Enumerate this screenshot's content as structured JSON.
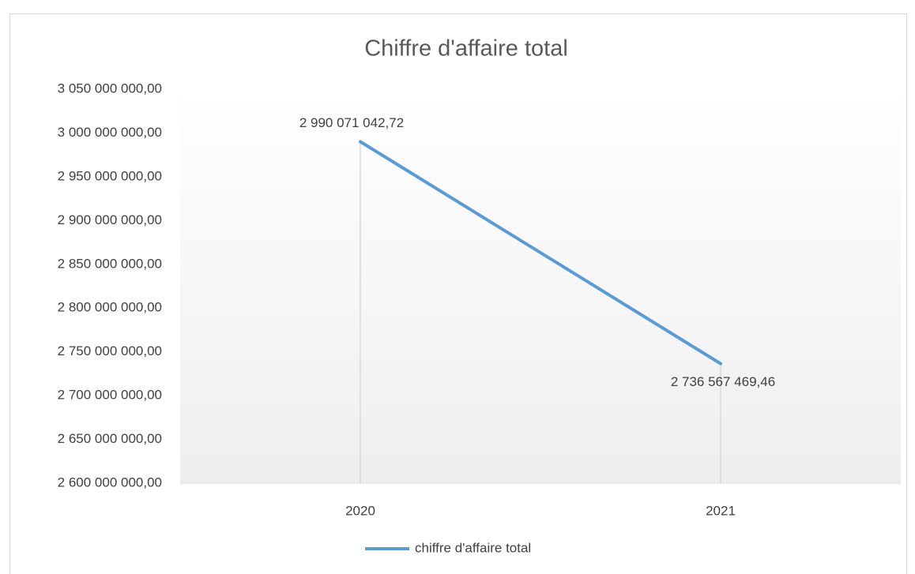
{
  "chart_data": {
    "type": "line",
    "title": "Chiffre d'affaire total",
    "categories": [
      "2020",
      "2021"
    ],
    "series": [
      {
        "name": "chiffre d'affaire total",
        "color": "#5b9bd5",
        "values": [
          2990071042.72,
          2736567469.46
        ],
        "value_labels": [
          "2 990 071 042,72",
          "2 736 567 469,46"
        ]
      }
    ],
    "ylim": [
      2600000000,
      3050000000
    ],
    "yticks": [
      {
        "value": 2600000000,
        "label": "2 600 000 000,00"
      },
      {
        "value": 2650000000,
        "label": "2 650 000 000,00"
      },
      {
        "value": 2700000000,
        "label": "2 700 000 000,00"
      },
      {
        "value": 2750000000,
        "label": "2 750 000 000,00"
      },
      {
        "value": 2800000000,
        "label": "2 800 000 000,00"
      },
      {
        "value": 2850000000,
        "label": "2 850 000 000,00"
      },
      {
        "value": 2900000000,
        "label": "2 900 000 000,00"
      },
      {
        "value": 2950000000,
        "label": "2 950 000 000,00"
      },
      {
        "value": 3000000000,
        "label": "3 000 000 000,00"
      },
      {
        "value": 3050000000,
        "label": "3 050 000 000,00"
      }
    ],
    "legend": "bottom"
  }
}
